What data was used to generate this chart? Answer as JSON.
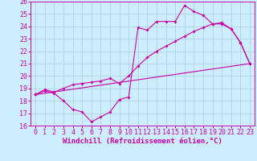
{
  "xlabel": "Windchill (Refroidissement éolien,°C)",
  "xlim": [
    -0.5,
    23.5
  ],
  "ylim": [
    16,
    26
  ],
  "xticks": [
    0,
    1,
    2,
    3,
    4,
    5,
    6,
    7,
    8,
    9,
    10,
    11,
    12,
    13,
    14,
    15,
    16,
    17,
    18,
    19,
    20,
    21,
    22,
    23
  ],
  "yticks": [
    16,
    17,
    18,
    19,
    20,
    21,
    22,
    23,
    24,
    25,
    26
  ],
  "bg_color": "#cceeff",
  "line_color": "#cc00aa",
  "grid_color": "#aaccdd",
  "line1_x": [
    0,
    1,
    2,
    3,
    4,
    5,
    6,
    7,
    8,
    9,
    10,
    11,
    12,
    13,
    14,
    15,
    16,
    17,
    18,
    19,
    20,
    21,
    22,
    23
  ],
  "line1_y": [
    18.5,
    18.8,
    18.6,
    18.0,
    17.3,
    17.1,
    16.3,
    16.7,
    17.1,
    18.1,
    18.3,
    23.9,
    23.7,
    24.4,
    24.4,
    24.4,
    25.7,
    25.2,
    24.9,
    24.2,
    24.2,
    23.8,
    22.7,
    21.0
  ],
  "line2_x": [
    0,
    1,
    2,
    3,
    4,
    5,
    6,
    7,
    8,
    9,
    10,
    11,
    12,
    13,
    14,
    15,
    16,
    17,
    18,
    19,
    20,
    21,
    22,
    23
  ],
  "line2_y": [
    18.5,
    18.9,
    18.7,
    19.0,
    19.3,
    19.4,
    19.5,
    19.6,
    19.8,
    19.4,
    20.0,
    20.8,
    21.5,
    22.0,
    22.4,
    22.8,
    23.2,
    23.6,
    23.9,
    24.2,
    24.3,
    23.8,
    22.7,
    21.0
  ],
  "line3_x": [
    0,
    23
  ],
  "line3_y": [
    18.5,
    21.0
  ],
  "marker": "D",
  "marker_size": 2,
  "linewidth": 0.8,
  "font_size": 6.5,
  "tick_font_size": 6
}
